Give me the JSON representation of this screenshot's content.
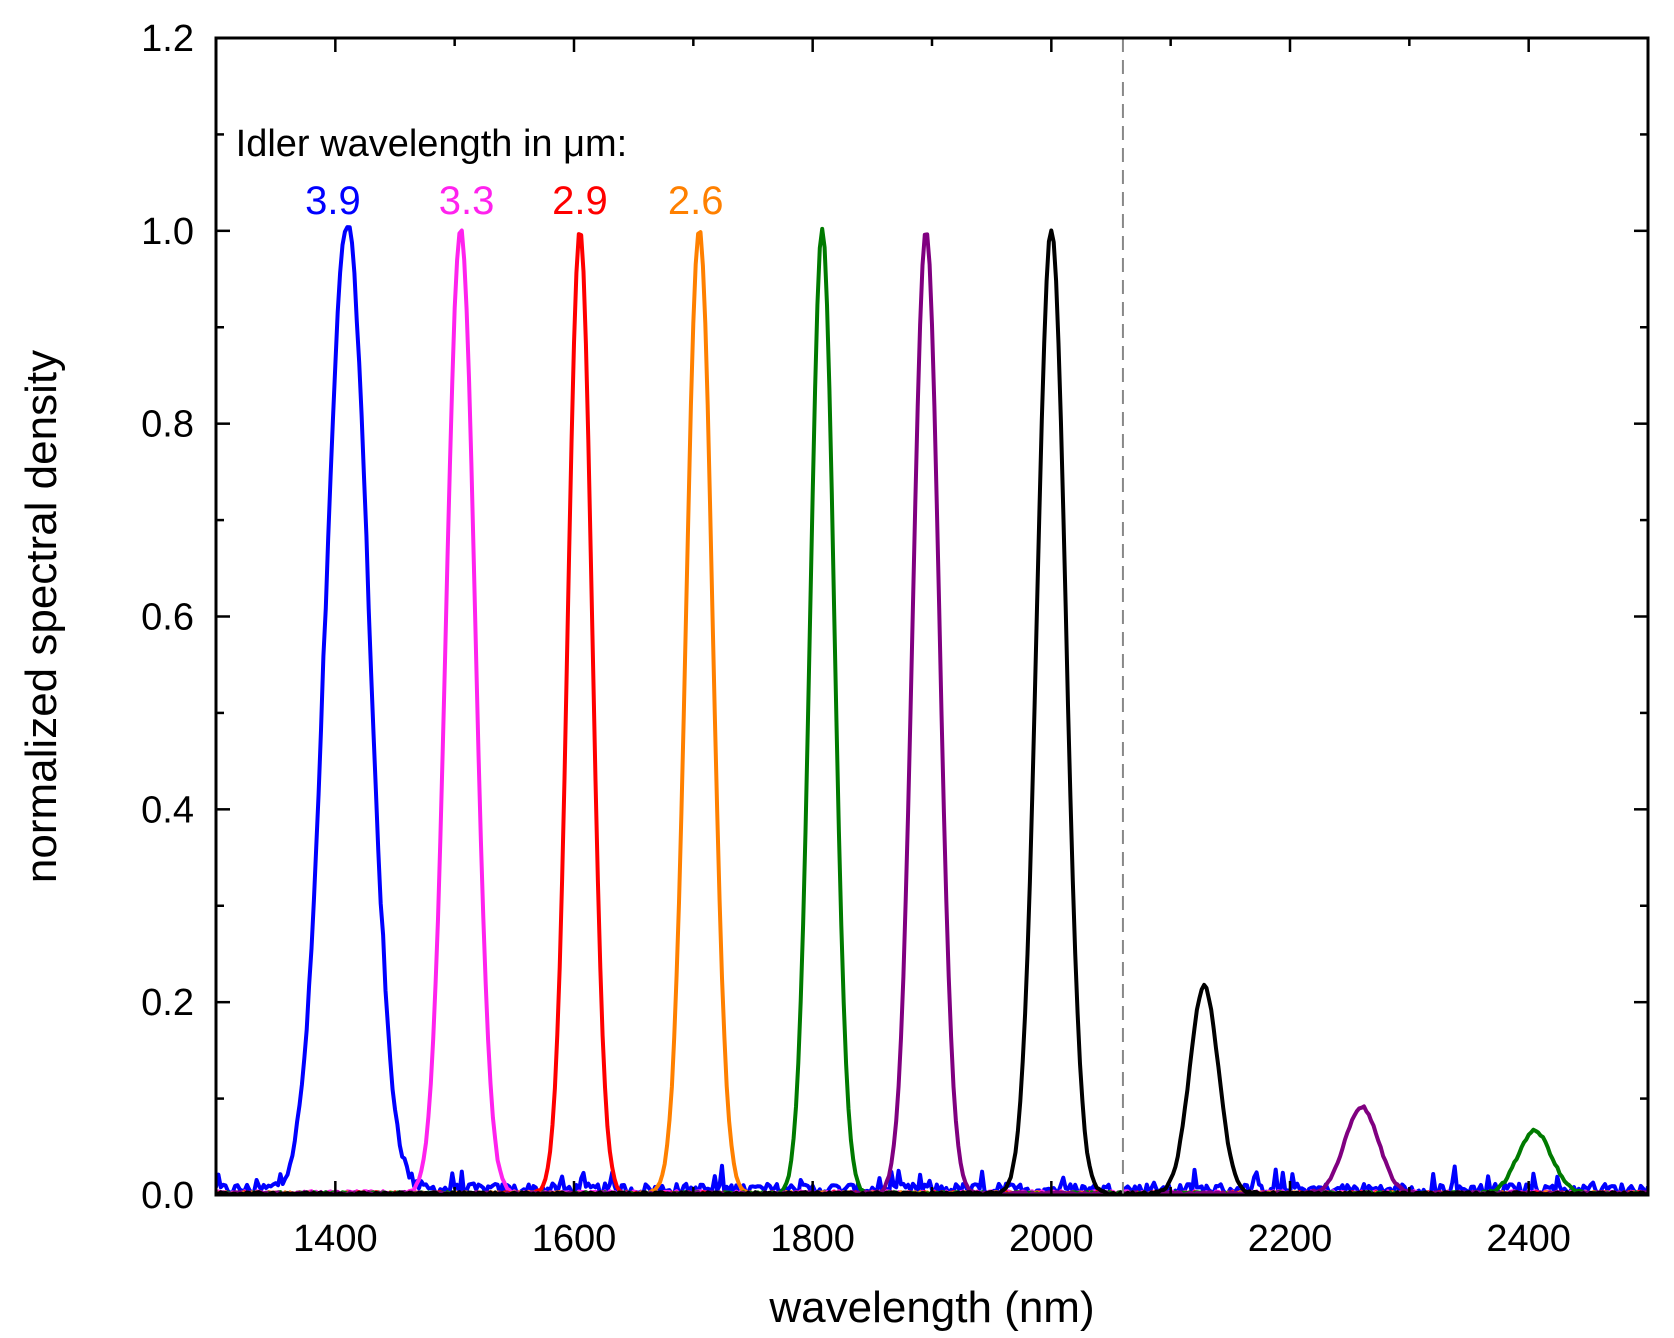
{
  "chart_data": {
    "type": "line",
    "title": "",
    "xlabel": "wavelength (nm)",
    "ylabel": "normalized spectral density",
    "xlim": [
      1300,
      2500
    ],
    "ylim": [
      0.0,
      1.2
    ],
    "x_ticks": [
      1400,
      1600,
      1800,
      2000,
      2200,
      2400
    ],
    "x_tick_labels": [
      "1400",
      "1600",
      "1800",
      "2000",
      "2200",
      "2400"
    ],
    "y_ticks": [
      0.0,
      0.2,
      0.4,
      0.6,
      0.8,
      1.0,
      1.2
    ],
    "y_tick_labels": [
      "0.0",
      "0.2",
      "0.4",
      "0.6",
      "0.8",
      "1.0",
      "1.2"
    ],
    "grid": false,
    "dashed_line_x": 2060,
    "annotation": {
      "title": "Idler wavelength in μm:",
      "labels": [
        {
          "text": "3.9",
          "x": 1398,
          "y": 1.03,
          "color": "#0000ff"
        },
        {
          "text": "3.3",
          "x": 1510,
          "y": 1.03,
          "color": "#ff22ee"
        },
        {
          "text": "2.9",
          "x": 1605,
          "y": 1.03,
          "color": "#ff0000"
        },
        {
          "text": "2.6",
          "x": 1702,
          "y": 1.03,
          "color": "#ff8000"
        }
      ],
      "title_x": 1350,
      "title_y": 1.09
    },
    "series": [
      {
        "name": "blue",
        "color": "#0000ff",
        "peaks": [
          {
            "center": 1410,
            "amp": 1.0,
            "width": 18
          }
        ],
        "noise": 0.012
      },
      {
        "name": "magenta",
        "color": "#ff22ee",
        "peaks": [
          {
            "center": 1505,
            "amp": 1.0,
            "width": 12
          }
        ],
        "noise": 0.004
      },
      {
        "name": "red",
        "color": "#ff0000",
        "peaks": [
          {
            "center": 1605,
            "amp": 1.0,
            "width": 10
          }
        ],
        "noise": 0.003
      },
      {
        "name": "orange",
        "color": "#ff8000",
        "peaks": [
          {
            "center": 1705,
            "amp": 1.0,
            "width": 11
          }
        ],
        "noise": 0.003
      },
      {
        "name": "green",
        "color": "#007a00",
        "peaks": [
          {
            "center": 1808,
            "amp": 1.0,
            "width": 10
          },
          {
            "center": 2405,
            "amp": 0.065,
            "width": 14
          }
        ],
        "noise": 0.003
      },
      {
        "name": "purple",
        "color": "#800080",
        "peaks": [
          {
            "center": 1895,
            "amp": 1.0,
            "width": 11
          },
          {
            "center": 2260,
            "amp": 0.09,
            "width": 14
          }
        ],
        "noise": 0.003
      },
      {
        "name": "black",
        "color": "#000000",
        "peaks": [
          {
            "center": 2000,
            "amp": 1.0,
            "width": 12
          },
          {
            "center": 2128,
            "amp": 0.215,
            "width": 12
          }
        ],
        "noise": 0.003
      }
    ]
  }
}
